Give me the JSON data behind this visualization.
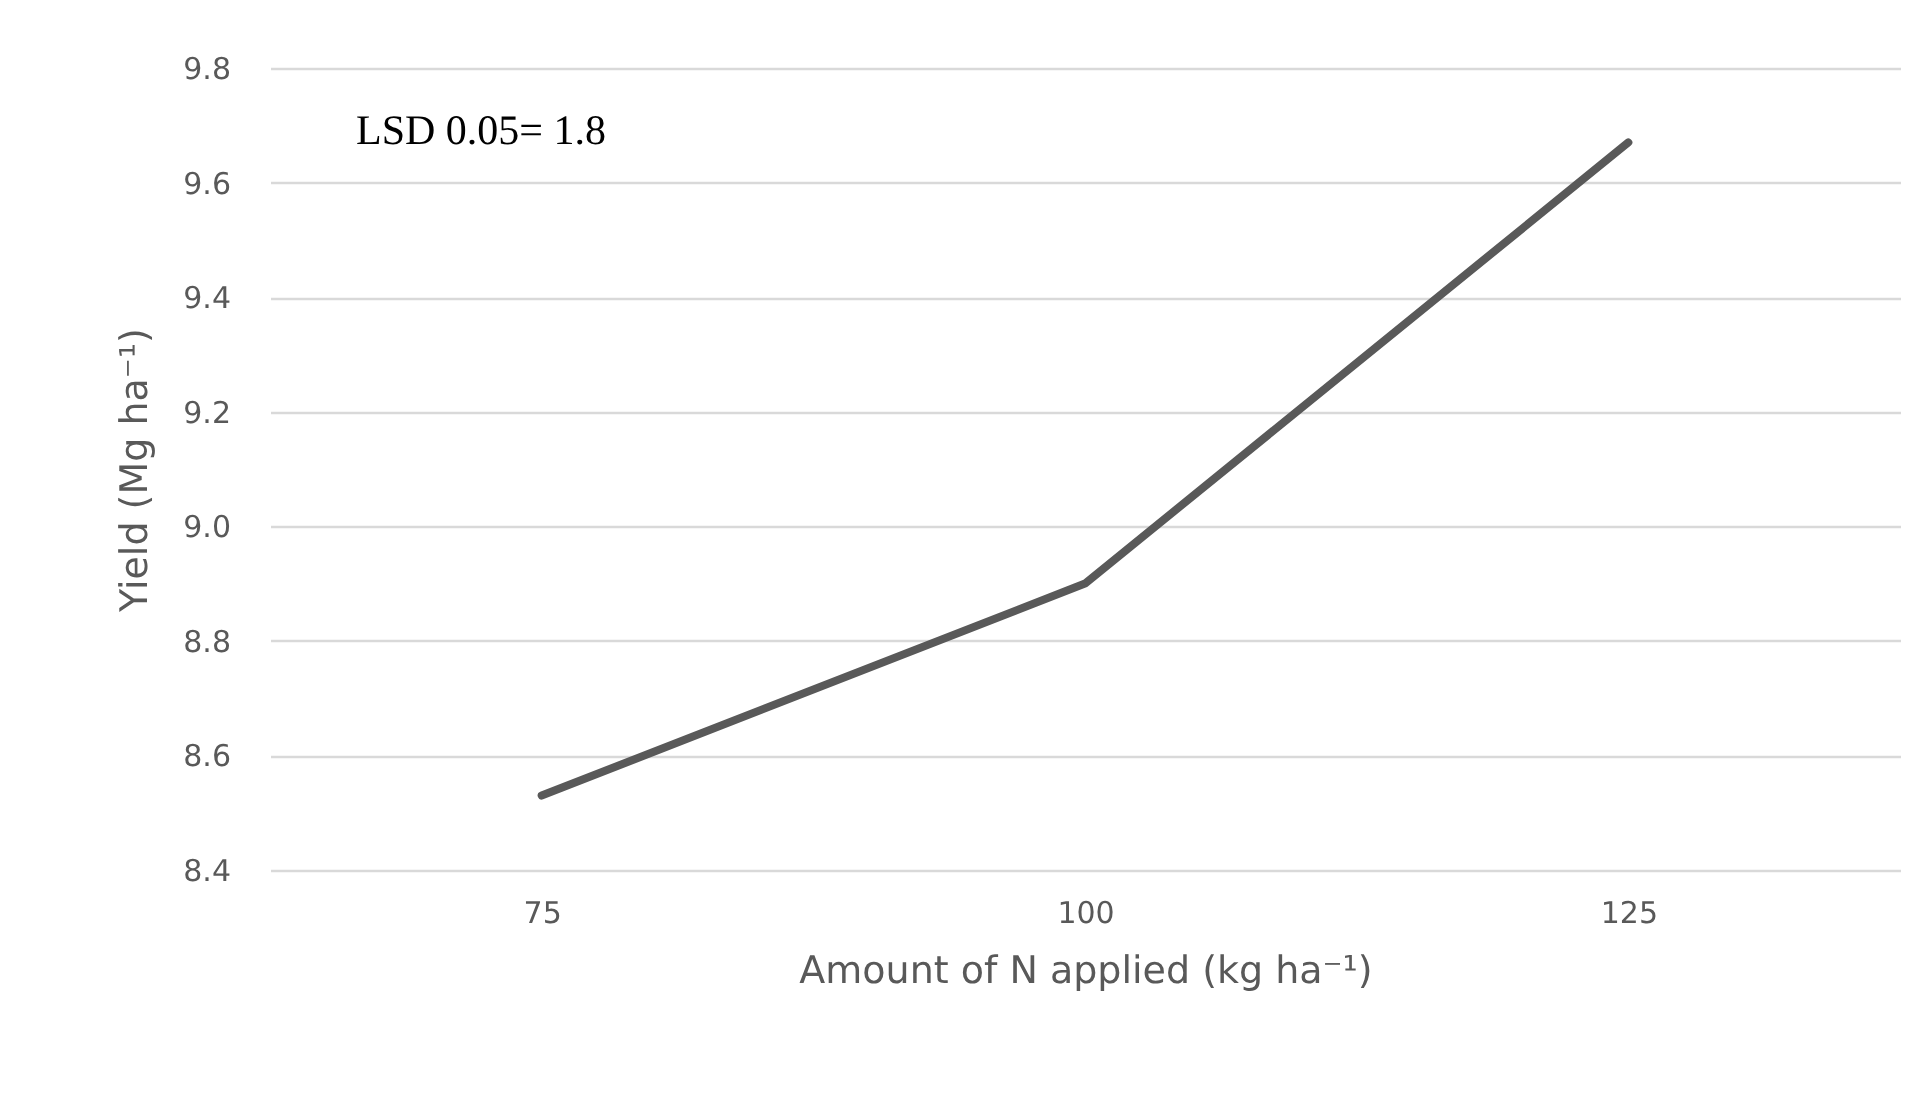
{
  "chart_data": {
    "type": "line",
    "xlabel": "Amount of N applied (kg ha⁻¹)",
    "ylabel": "Yield (Mg ha⁻¹)",
    "categories": [
      "75",
      "100",
      "125"
    ],
    "series": [
      {
        "color": "#595959",
        "values": [
          8.53,
          8.9,
          9.67
        ]
      }
    ],
    "ylim": [
      8.4,
      9.8
    ],
    "yticks": [
      {
        "value": 8.4,
        "label": "8.4"
      },
      {
        "value": 8.6,
        "label": "8.6"
      },
      {
        "value": 8.8,
        "label": "8.8"
      },
      {
        "value": 9.0,
        "label": "9.0"
      },
      {
        "value": 9.2,
        "label": "9.2"
      },
      {
        "value": 9.4,
        "label": "9.4"
      },
      {
        "value": 9.6,
        "label": "9.6"
      },
      {
        "value": 9.8,
        "label": "9.8"
      }
    ],
    "grid": "y",
    "legend": false,
    "marker": "none",
    "line_style": "solid",
    "annotations": [
      "LSD 0.05= 1.8"
    ]
  }
}
